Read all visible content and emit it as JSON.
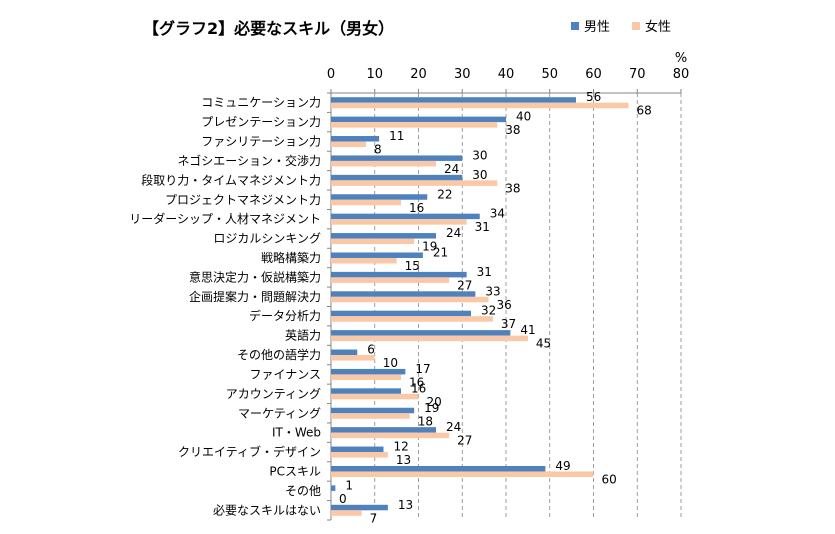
{
  "colors": {
    "male": "#4F81BD",
    "female": "#FAC8A6",
    "axis": "#868686",
    "grid": "#868686"
  },
  "chart_data": {
    "type": "bar",
    "orientation": "horizontal",
    "title": "【グラフ2】必要なスキル（男女）",
    "unit_label": "%",
    "xlim": [
      0,
      80
    ],
    "x_ticks": [
      "0",
      "10",
      "20",
      "30",
      "40",
      "50",
      "60",
      "70",
      "80"
    ],
    "grid": "dashed vertical",
    "legend_position": "top-right",
    "categories": [
      "コミュニケーション力",
      "プレゼンテーション力",
      "ファシリテーション力",
      "ネゴシエーション・交渉力",
      "段取り力・タイムマネジメント力",
      "プロジェクトマネジメント力",
      "リーダーシップ・人材マネジメント",
      "ロジカルシンキング",
      "戦略構築力",
      "意思決定力・仮説構築力",
      "企画提案力・問題解決力",
      "データ分析力",
      "英語力",
      "その他の語学力",
      "ファイナンス",
      "アカウンティング",
      "マーケティング",
      "IT・Web",
      "クリエイティブ・デザイン",
      "PCスキル",
      "その他",
      "必要なスキルはない"
    ],
    "series": [
      {
        "name": "男性",
        "values": [
          56,
          40,
          11,
          30,
          30,
          22,
          34,
          24,
          21,
          31,
          33,
          32,
          41,
          6,
          17,
          16,
          19,
          24,
          12,
          49,
          1,
          13
        ]
      },
      {
        "name": "女性",
        "values": [
          68,
          38,
          8,
          24,
          38,
          16,
          31,
          19,
          15,
          27,
          36,
          37,
          45,
          10,
          16,
          20,
          18,
          27,
          13,
          60,
          0,
          7
        ]
      }
    ]
  }
}
